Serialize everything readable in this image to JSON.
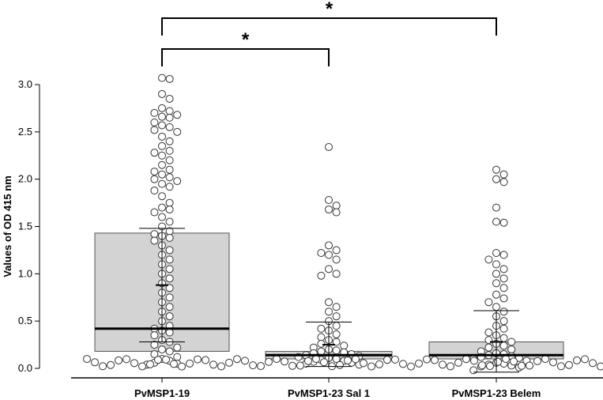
{
  "chart_data": {
    "type": "box",
    "title": "",
    "xlabel": "",
    "ylabel": "Values of OD 415 nm",
    "ylim": [
      0,
      3.0
    ],
    "yticks": [
      "0.0",
      "0.5",
      "1.0",
      "1.5",
      "2.0",
      "2.5",
      "3.0"
    ],
    "categories": [
      "PvMSP1-19",
      "PvMSP1-23 Sal 1",
      "PvMSP1-23 Belem"
    ],
    "boxes": [
      {
        "category": "PvMSP1-19",
        "q1": 0.18,
        "median": 0.42,
        "q3": 1.43,
        "mean": 0.88,
        "mean_minus_sd": 0.28,
        "mean_plus_sd": 1.48
      },
      {
        "category": "PvMSP1-23 Sal 1",
        "q1": 0.1,
        "median": 0.14,
        "q3": 0.18,
        "mean": 0.25,
        "mean_minus_sd": 0.02,
        "mean_plus_sd": 0.49
      },
      {
        "category": "PvMSP1-23 Belem",
        "q1": 0.1,
        "median": 0.14,
        "q3": 0.28,
        "mean": 0.28,
        "mean_minus_sd": -0.04,
        "mean_plus_sd": 0.61
      }
    ],
    "points": {
      "PvMSP1-19": [
        3.07,
        3.06,
        2.9,
        2.85,
        2.75,
        2.72,
        2.7,
        2.68,
        2.66,
        2.65,
        2.6,
        2.57,
        2.55,
        2.52,
        2.5,
        2.45,
        2.4,
        2.35,
        2.3,
        2.28,
        2.25,
        2.2,
        2.15,
        2.1,
        2.08,
        2.05,
        2.02,
        2.0,
        1.98,
        1.95,
        1.92,
        1.88,
        1.82,
        1.75,
        1.7,
        1.68,
        1.65,
        1.6,
        1.55,
        1.5,
        1.45,
        1.42,
        1.4,
        1.38,
        1.35,
        1.3,
        1.25,
        1.2,
        1.15,
        1.1,
        1.05,
        1.0,
        0.95,
        0.9,
        0.85,
        0.8,
        0.75,
        0.7,
        0.65,
        0.6,
        0.55,
        0.5,
        0.45,
        0.42,
        0.4,
        0.38,
        0.35,
        0.3,
        0.28,
        0.25,
        0.22,
        0.2,
        0.18,
        0.15,
        0.12,
        0.1,
        0.08,
        0.06,
        0.05,
        0.04
      ],
      "PvMSP1-23 Sal 1": [
        2.34,
        1.78,
        1.72,
        1.68,
        1.65,
        1.3,
        1.25,
        1.22,
        1.2,
        1.15,
        1.05,
        1.0,
        0.98,
        0.7,
        0.65,
        0.6,
        0.55,
        0.5,
        0.45,
        0.42,
        0.4,
        0.36,
        0.33,
        0.3,
        0.28,
        0.26,
        0.24,
        0.22,
        0.2,
        0.19,
        0.18,
        0.17,
        0.16,
        0.15,
        0.14,
        0.13,
        0.12,
        0.11,
        0.1,
        0.09,
        0.08,
        0.07,
        0.06,
        0.05,
        0.04
      ],
      "PvMSP1-23 Belem": [
        2.1,
        2.05,
        2.0,
        1.97,
        1.7,
        1.55,
        1.54,
        1.22,
        1.2,
        1.15,
        1.1,
        1.05,
        1.0,
        0.95,
        0.9,
        0.85,
        0.78,
        0.74,
        0.7,
        0.65,
        0.6,
        0.55,
        0.5,
        0.45,
        0.42,
        0.38,
        0.35,
        0.32,
        0.3,
        0.28,
        0.26,
        0.24,
        0.22,
        0.2,
        0.18,
        0.16,
        0.15,
        0.14,
        0.13,
        0.12,
        0.11,
        0.1,
        0.08,
        0.06,
        0.05,
        0.04,
        0.03,
        0.02,
        0.01,
        -0.02
      ]
    },
    "comparisons": [
      {
        "from": "PvMSP1-19",
        "to": "PvMSP1-23 Sal 1",
        "label": "*"
      },
      {
        "from": "PvMSP1-19",
        "to": "PvMSP1-23 Belem",
        "label": "*"
      }
    ],
    "colors": {
      "box_fill": "#d3d3d3",
      "box_stroke": "#555555",
      "median": "#000000",
      "point_fill": "#ffffff",
      "point_stroke": "#333333"
    }
  }
}
